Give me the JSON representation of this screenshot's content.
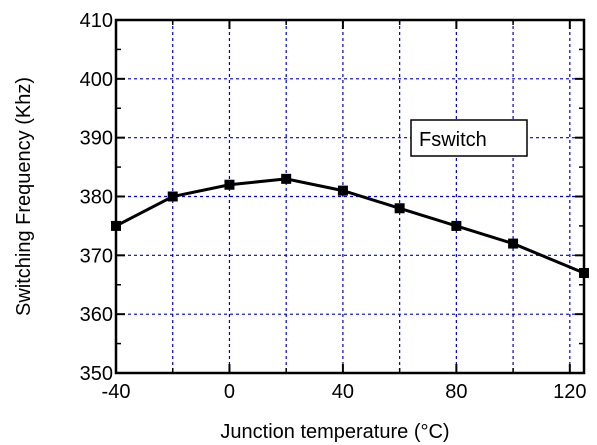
{
  "chart_data": {
    "type": "line",
    "xlabel": "Junction temperature (°C)",
    "ylabel": "Switching Frequency (Khz)",
    "xlim": [
      -40,
      125
    ],
    "ylim": [
      350,
      410
    ],
    "x_ticks": [
      -40,
      0,
      40,
      80,
      120
    ],
    "y_ticks": [
      350,
      360,
      370,
      380,
      390,
      400,
      410
    ],
    "x_grid": [
      -20,
      0,
      20,
      40,
      60,
      80,
      100,
      120
    ],
    "y_grid": [
      360,
      370,
      380,
      390,
      400
    ],
    "grid": true,
    "grid_color": "#0000cc",
    "line_color": "#000000",
    "marker": "square",
    "legend_placement": "right",
    "series": [
      {
        "name": "Fswitch",
        "x": [
          -40,
          -20,
          0,
          20,
          40,
          60,
          80,
          100,
          125
        ],
        "y": [
          375,
          380,
          382,
          383,
          381,
          378,
          375,
          372,
          367
        ]
      }
    ]
  }
}
